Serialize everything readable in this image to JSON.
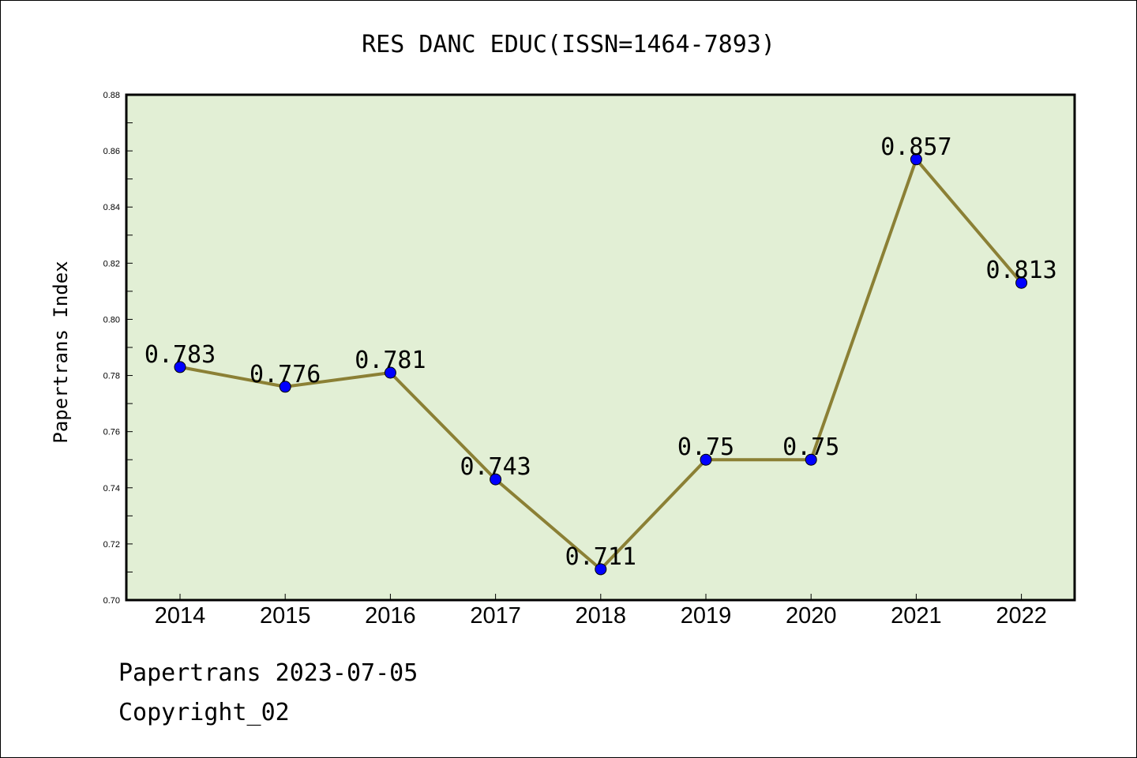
{
  "chart_data": {
    "type": "line",
    "title": "RES DANC EDUC(ISSN=1464-7893)",
    "xlabel": "",
    "ylabel": "Papertrans Index",
    "categories": [
      "2014",
      "2015",
      "2016",
      "2017",
      "2018",
      "2019",
      "2020",
      "2021",
      "2022"
    ],
    "series": [
      {
        "values": [
          0.783,
          0.776,
          0.781,
          0.743,
          0.711,
          0.75,
          0.75,
          0.857,
          0.813
        ]
      }
    ],
    "data_labels": [
      "0.783",
      "0.776",
      "0.781",
      "0.743",
      "0.711",
      "0.75",
      "0.75",
      "0.857",
      "0.813"
    ],
    "ylim": [
      0.7,
      0.88
    ],
    "yticks": [
      "0.70",
      "0.72",
      "0.74",
      "0.76",
      "0.78",
      "0.80",
      "0.82",
      "0.84",
      "0.86",
      "0.88"
    ],
    "grid": false,
    "colors": {
      "plot_bg": "#e2efd5",
      "line": "#8b8035",
      "marker": "#0000ff"
    }
  },
  "footer": {
    "line1": "Papertrans 2023-07-05",
    "line2": "Copyright_02"
  }
}
